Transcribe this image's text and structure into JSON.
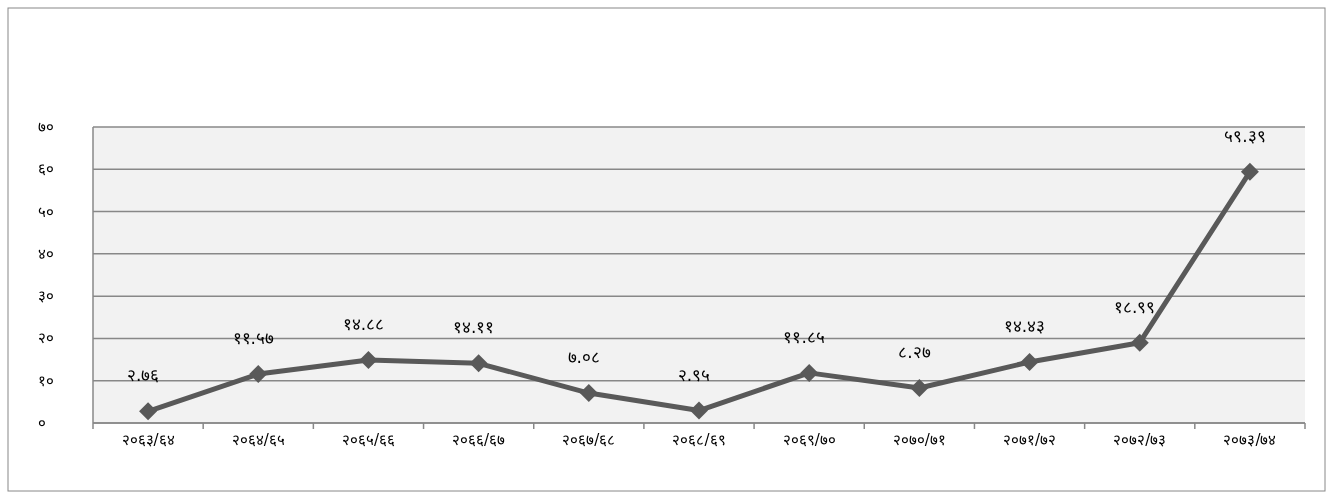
{
  "chart_data": {
    "type": "line",
    "categories": [
      "२०६३/६४",
      "२०६४/६५",
      "२०६५/६६",
      "२०६६/६७",
      "२०६७/६८",
      "२०६८/६९",
      "२०६९/७०",
      "२०७०/७१",
      "२०७१/७२",
      "२०७२/७३",
      "२०७३/७४"
    ],
    "series": [
      {
        "color": "#595959",
        "values": [
          2.76,
          11.57,
          14.88,
          14.11,
          7.08,
          2.95,
          11.85,
          8.27,
          14.43,
          18.99,
          59.39
        ],
        "value_labels": [
          "२.७६",
          "११.५७",
          "१४.८८",
          "१४.११",
          "७.०८",
          "२.९५",
          "११.८५",
          "८.२७",
          "१४.४३",
          "१८.९९",
          "५९.३९"
        ]
      }
    ],
    "ylim": [
      0,
      70
    ],
    "yticks": [
      {
        "value": 0,
        "label": "०"
      },
      {
        "value": 10,
        "label": "१०"
      },
      {
        "value": 20,
        "label": "२०"
      },
      {
        "value": 30,
        "label": "३०"
      },
      {
        "value": 40,
        "label": "४०"
      },
      {
        "value": 50,
        "label": "५०"
      },
      {
        "value": 60,
        "label": "६०"
      },
      {
        "value": 70,
        "label": "७०"
      }
    ],
    "grid": "y",
    "marker": "diamond",
    "line_style": "solid"
  }
}
